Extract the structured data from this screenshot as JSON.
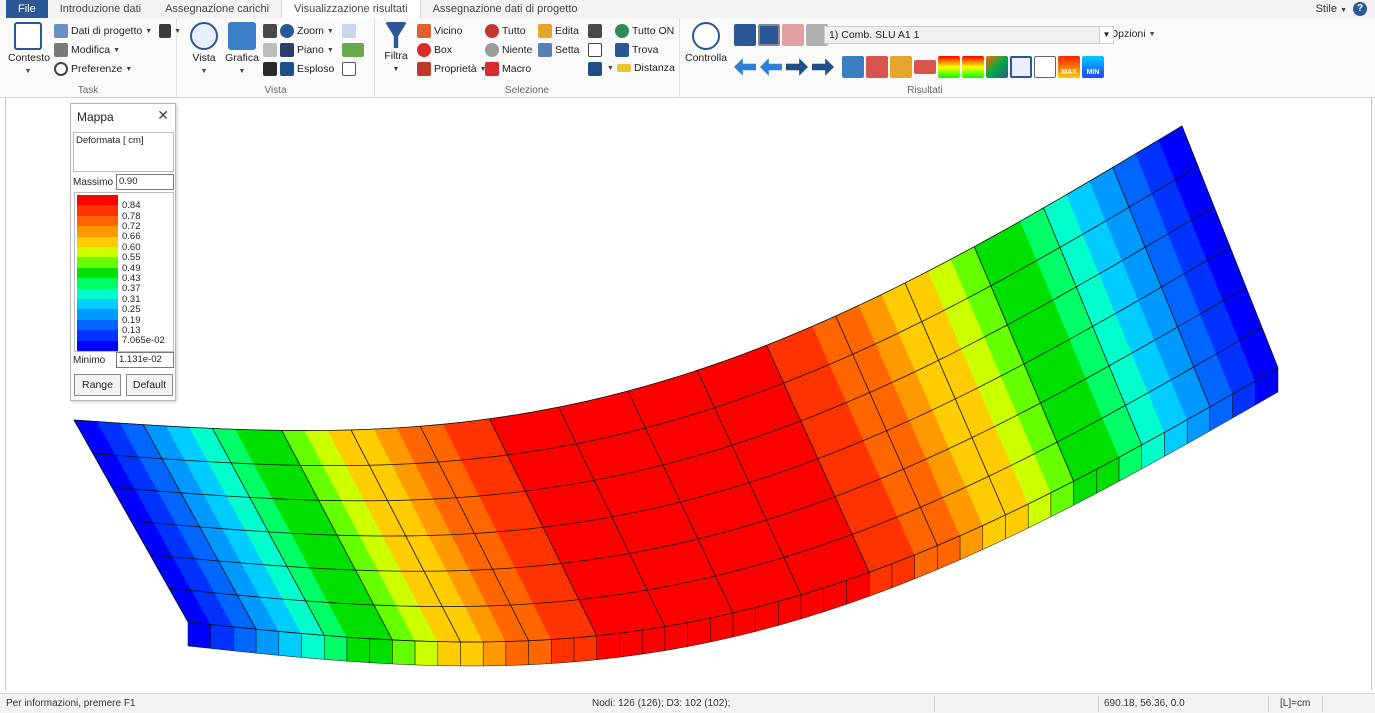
{
  "tabs": [
    {
      "label": "File"
    },
    {
      "label": "Introduzione dati"
    },
    {
      "label": "Assegnazione carichi"
    },
    {
      "label": "Visualizzazione risultati"
    },
    {
      "label": "Assegnazione dati di progetto"
    }
  ],
  "style_menu": "Stile",
  "help_icon": "?",
  "ribbon": {
    "task": {
      "group_label": "Task",
      "contesto": "Contesto",
      "dati_progetto": "Dati di progetto",
      "modifica": "Modifica",
      "preferenze": "Preferenze"
    },
    "vista": {
      "group_label": "Vista",
      "vista": "Vista",
      "grafica": "Grafica",
      "zoom": "Zoom",
      "piano": "Piano",
      "esploso": "Esploso"
    },
    "selezione": {
      "group_label": "Selezione",
      "filtra": "Filtra",
      "vicino": "Vicino",
      "box": "Box",
      "proprieta": "Proprietà",
      "tutto": "Tutto",
      "niente": "Niente",
      "macro": "Macro",
      "edita": "Edita",
      "setta": "Setta",
      "tutto_on": "Tutto ON",
      "trova": "Trova",
      "distanza": "Distanza"
    },
    "risultati": {
      "group_label": "Risultati",
      "controlla": "Controlla",
      "combo_value": "1) Comb. SLU A1 1",
      "opzioni": "Opzioni",
      "max_badge": "MAX",
      "min_badge": "MIN"
    }
  },
  "mappa": {
    "title": "Mappa",
    "description": "Deformata [ cm]",
    "max_label": "Massimo",
    "max_value": "0.90",
    "min_label": "Minimo",
    "min_value": "1.131e-02",
    "range_button": "Range",
    "default_button": "Default",
    "legend": [
      {
        "value": "0.84",
        "color": "#ff0000"
      },
      {
        "value": "0.78",
        "color": "#ff3300"
      },
      {
        "value": "0.72",
        "color": "#ff6600"
      },
      {
        "value": "0.66",
        "color": "#ff9900"
      },
      {
        "value": "0.60",
        "color": "#ffcc00"
      },
      {
        "value": "0.55",
        "color": "#ccff00"
      },
      {
        "value": "0.49",
        "color": "#66ff00"
      },
      {
        "value": "0.43",
        "color": "#00e000"
      },
      {
        "value": "0.37",
        "color": "#00ff66"
      },
      {
        "value": "0.31",
        "color": "#00ffcc"
      },
      {
        "value": "0.25",
        "color": "#00ccff"
      },
      {
        "value": "0.19",
        "color": "#0099ff"
      },
      {
        "value": "0.13",
        "color": "#0066ff"
      },
      {
        "value": "7.065e-02",
        "color": "#0033ff"
      },
      {
        "value": "",
        "color": "#0000ff"
      }
    ]
  },
  "status": {
    "help": "Per informazioni, premere F1",
    "nodes": "Nodi: 126 (126); D3: 102 (102);",
    "coords": "690.18, 56.36, 0.0",
    "units": "[L]=cm"
  }
}
